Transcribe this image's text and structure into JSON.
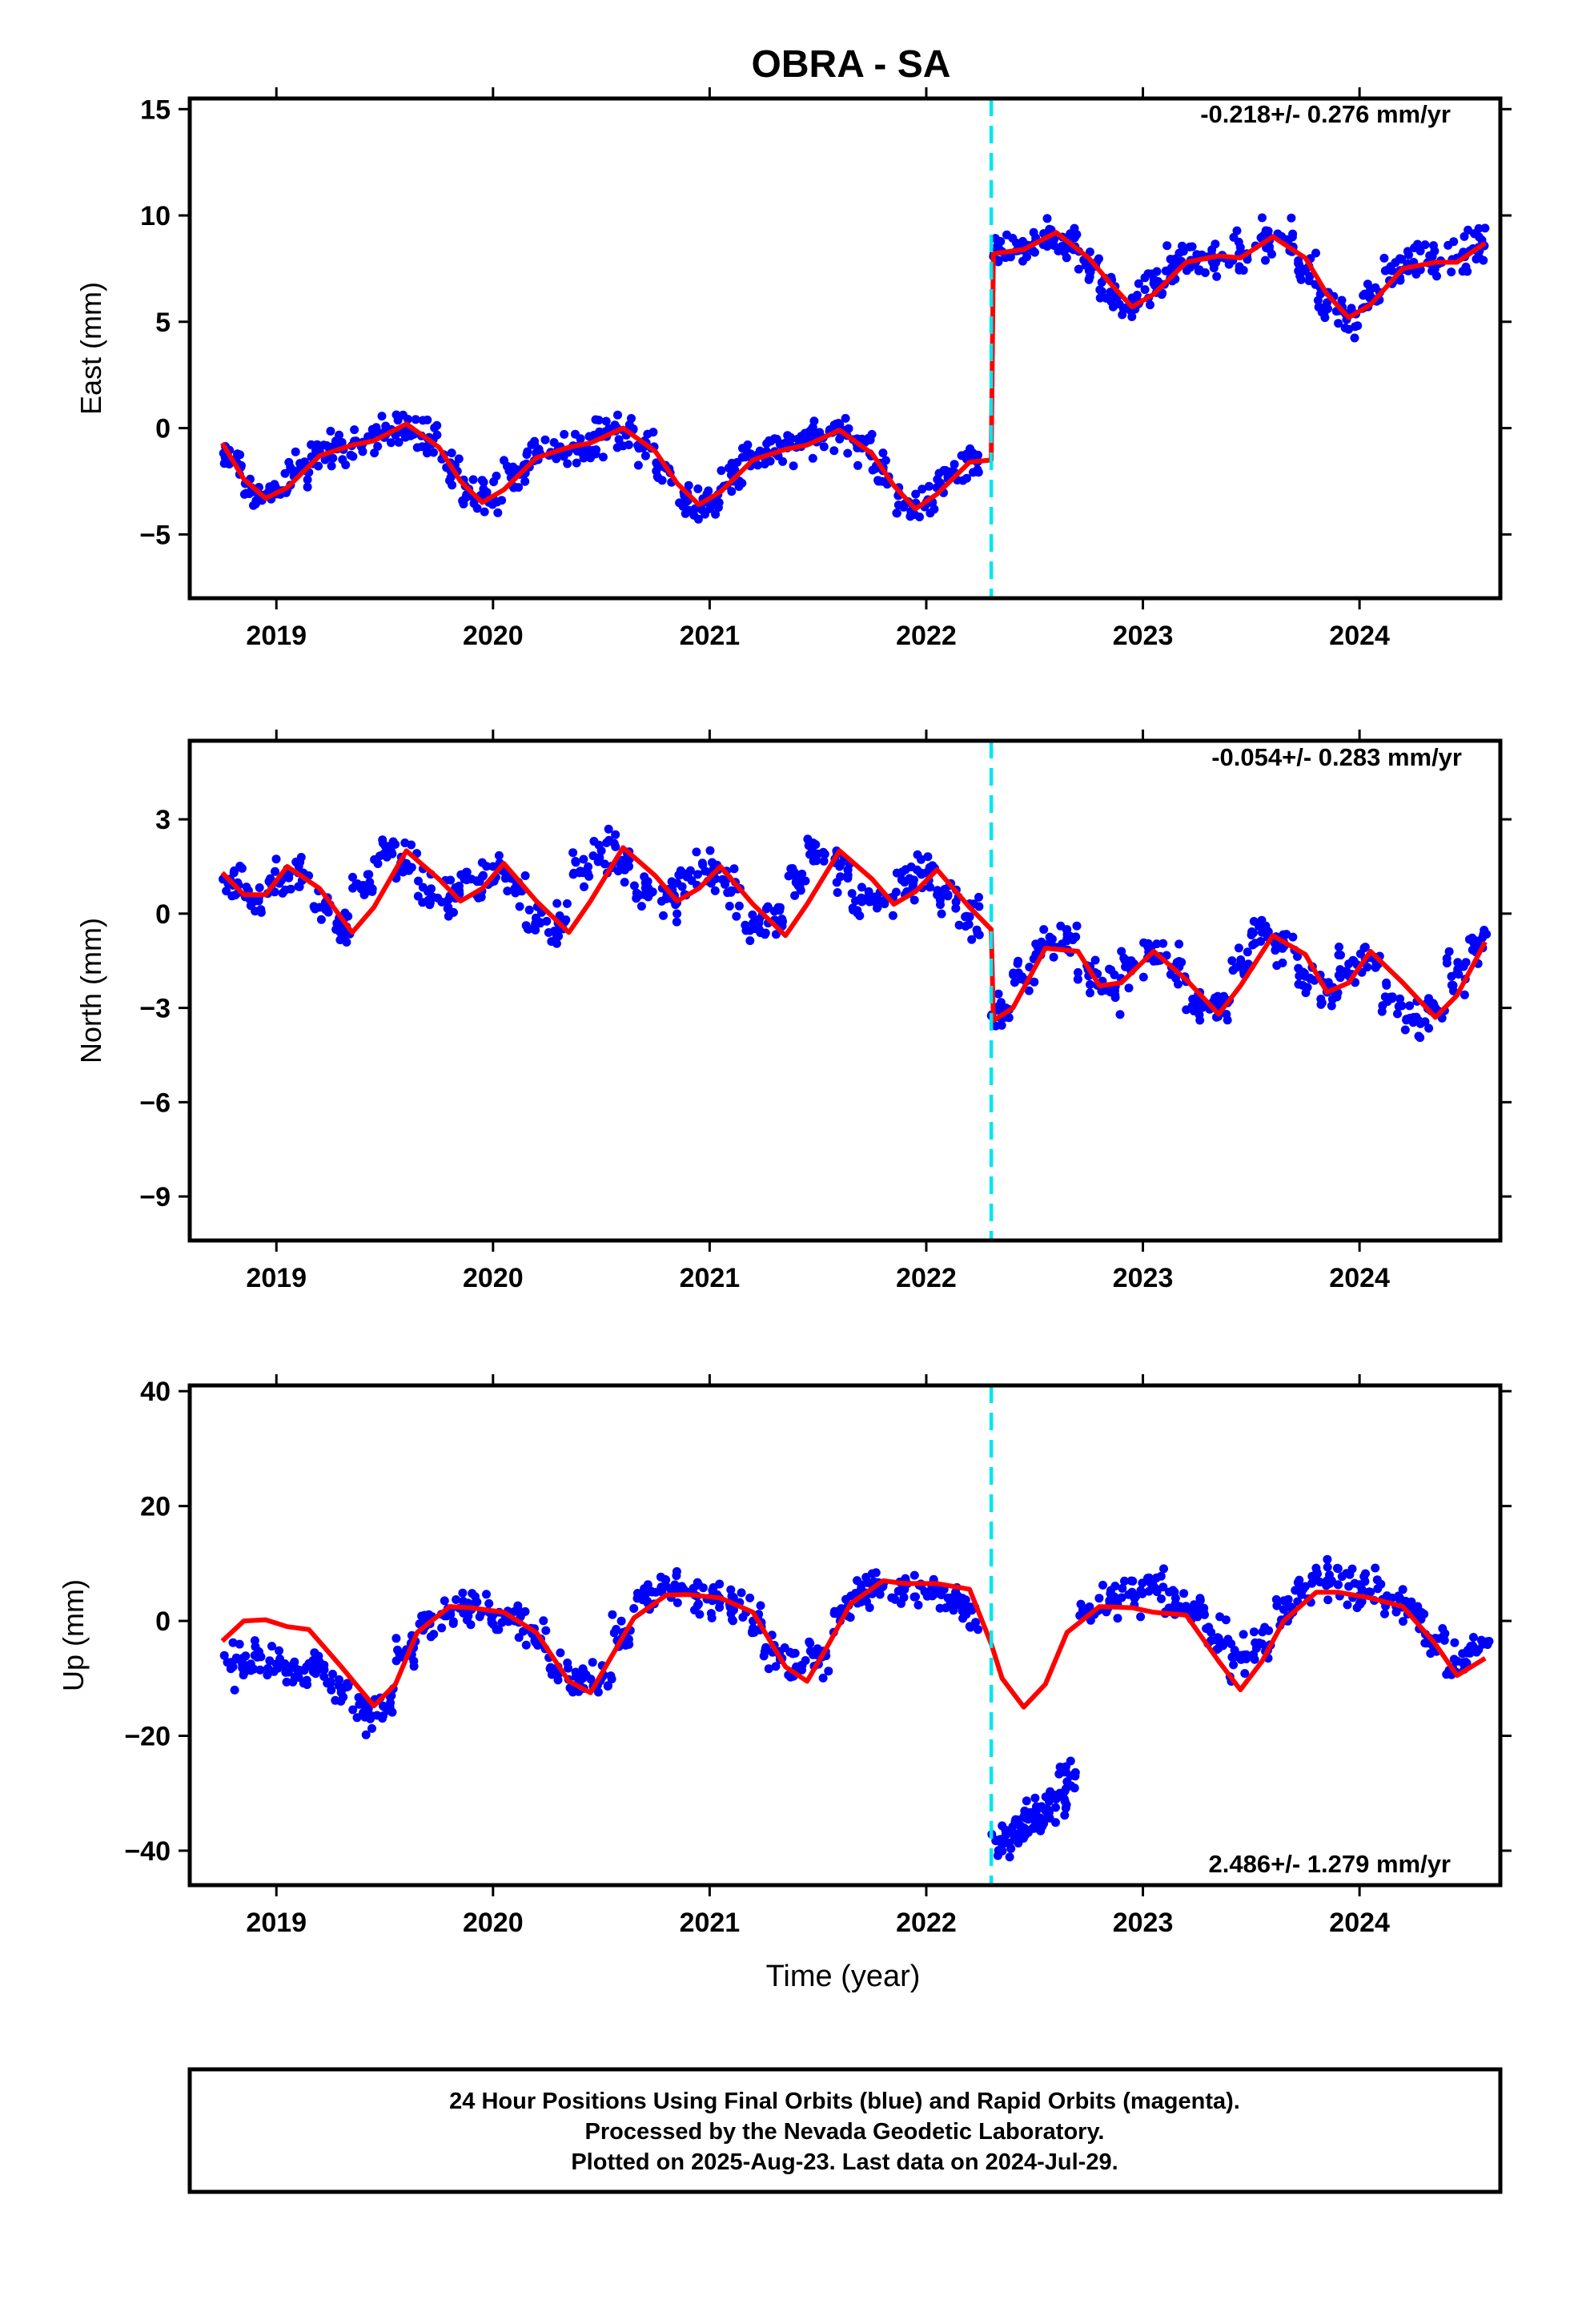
{
  "title": "OBRA - SA",
  "x_axis_label": "Time (year)",
  "footer": {
    "line1": "24 Hour Positions Using Final Orbits (blue) and Rapid Orbits (magenta).",
    "line2": "Processed by the Nevada Geodetic Laboratory.",
    "line3": "Plotted on 2025-Aug-23. Last data on 2024-Jul-29."
  },
  "colors": {
    "points": "#0000ff",
    "model": "#ff0000",
    "offset_line": "#00e5ee",
    "frame": "#000000"
  },
  "chart_data": [
    {
      "type": "scatter",
      "component": "east",
      "ylabel": "East (mm)",
      "rate": "-0.218+/- 0.276 mm/yr",
      "xlim": [
        2018.6,
        2024.65
      ],
      "ylim": [
        -8,
        15.5
      ],
      "xticks": [
        2019,
        2020,
        2021,
        2022,
        2023,
        2024
      ],
      "yticks": [
        -5,
        0,
        5,
        10,
        15
      ],
      "offset_epoch": 2022.3,
      "model_line": {
        "x": [
          2018.75,
          2018.85,
          2018.95,
          2019.05,
          2019.2,
          2019.35,
          2019.45,
          2019.6,
          2019.75,
          2019.85,
          2019.95,
          2020.05,
          2020.2,
          2020.35,
          2020.45,
          2020.6,
          2020.75,
          2020.85,
          2020.95,
          2021.05,
          2021.2,
          2021.35,
          2021.45,
          2021.6,
          2021.75,
          2021.85,
          2021.95,
          2022.05,
          2022.2,
          2022.3,
          2022.31,
          2022.45,
          2022.6,
          2022.75,
          2022.85,
          2022.95,
          2023.05,
          2023.2,
          2023.35,
          2023.45,
          2023.6,
          2023.75,
          2023.85,
          2023.95,
          2024.05,
          2024.2,
          2024.35,
          2024.45,
          2024.58
        ],
        "y": [
          -0.7,
          -2.4,
          -3.3,
          -2.8,
          -1.3,
          -0.8,
          -0.6,
          0.2,
          -0.9,
          -2.5,
          -3.5,
          -2.9,
          -1.4,
          -0.9,
          -0.7,
          0.0,
          -1.1,
          -2.6,
          -3.6,
          -3.0,
          -1.5,
          -1.0,
          -0.8,
          -0.1,
          -1.2,
          -2.7,
          -3.8,
          -3.1,
          -1.6,
          -1.5,
          8.2,
          8.4,
          9.2,
          8.0,
          6.8,
          5.7,
          6.3,
          7.8,
          8.1,
          8.0,
          9.0,
          8.0,
          6.3,
          5.2,
          5.8,
          7.5,
          7.8,
          7.8,
          8.7
        ]
      },
      "series": [
        {
          "name": "Final Orbits",
          "x": [
            2018.8,
            2018.9,
            2019.0,
            2019.1,
            2019.2,
            2019.3,
            2019.4,
            2019.5,
            2019.6,
            2019.7,
            2019.8,
            2019.9,
            2020.0,
            2020.1,
            2020.2,
            2020.3,
            2020.4,
            2020.5,
            2020.6,
            2020.7,
            2020.8,
            2020.9,
            2021.0,
            2021.1,
            2021.2,
            2021.3,
            2021.4,
            2021.5,
            2021.6,
            2021.7,
            2021.8,
            2021.9,
            2022.0,
            2022.1,
            2022.2,
            2022.35,
            2022.45,
            2022.55,
            2022.65,
            2022.75,
            2022.85,
            2022.95,
            2023.05,
            2023.15,
            2023.25,
            2023.35,
            2023.45,
            2023.55,
            2023.65,
            2023.75,
            2023.85,
            2023.95,
            2024.05,
            2024.15,
            2024.25,
            2024.35,
            2024.45,
            2024.55
          ],
          "y": [
            -1.5,
            -3.0,
            -3.1,
            -2.0,
            -1.1,
            -0.9,
            -0.7,
            -0.3,
            0.0,
            -0.5,
            -1.8,
            -3.2,
            -3.3,
            -2.1,
            -1.2,
            -1.0,
            -0.8,
            -0.4,
            -0.1,
            -0.6,
            -1.9,
            -3.4,
            -3.4,
            -2.2,
            -1.3,
            -1.1,
            -0.9,
            -0.4,
            -0.2,
            -0.7,
            -2.0,
            -3.6,
            -3.5,
            -2.3,
            -1.5,
            8.3,
            8.6,
            9.0,
            8.8,
            7.6,
            6.4,
            5.9,
            6.8,
            7.7,
            8.1,
            8.0,
            8.2,
            8.9,
            8.8,
            7.4,
            5.9,
            5.3,
            6.2,
            7.4,
            7.8,
            7.7,
            8.0,
            8.5
          ]
        }
      ]
    },
    {
      "type": "scatter",
      "component": "north",
      "ylabel": "North (mm)",
      "rate": "-0.054+/- 0.283 mm/yr",
      "xlim": [
        2018.6,
        2024.65
      ],
      "ylim": [
        -10.4,
        5.5
      ],
      "xticks": [
        2019,
        2020,
        2021,
        2022,
        2023,
        2024
      ],
      "yticks": [
        -9,
        -6,
        -3,
        0,
        3
      ],
      "offset_epoch": 2022.3,
      "model_line": {
        "x": [
          2018.75,
          2018.85,
          2018.95,
          2019.05,
          2019.2,
          2019.35,
          2019.45,
          2019.6,
          2019.75,
          2019.85,
          2019.95,
          2020.05,
          2020.2,
          2020.35,
          2020.45,
          2020.6,
          2020.75,
          2020.85,
          2020.95,
          2021.05,
          2021.2,
          2021.35,
          2021.45,
          2021.6,
          2021.75,
          2021.85,
          2021.95,
          2022.05,
          2022.2,
          2022.3,
          2022.31,
          2022.4,
          2022.55,
          2022.7,
          2022.8,
          2022.9,
          2023.05,
          2023.2,
          2023.35,
          2023.45,
          2023.6,
          2023.75,
          2023.85,
          2023.95,
          2024.05,
          2024.2,
          2024.35,
          2024.45,
          2024.58
        ],
        "y": [
          1.3,
          0.6,
          0.6,
          1.5,
          0.8,
          -0.6,
          0.2,
          2.0,
          1.1,
          0.4,
          0.8,
          1.6,
          0.4,
          -0.6,
          0.4,
          2.1,
          1.2,
          0.4,
          0.8,
          1.5,
          0.3,
          -0.7,
          0.3,
          2.0,
          1.1,
          0.3,
          0.7,
          1.4,
          0.2,
          -0.5,
          -3.4,
          -3.0,
          -1.1,
          -1.2,
          -2.3,
          -2.2,
          -1.2,
          -2.1,
          -3.2,
          -2.3,
          -0.7,
          -1.3,
          -2.5,
          -2.2,
          -1.2,
          -2.2,
          -3.3,
          -2.6,
          -0.9
        ]
      },
      "series": [
        {
          "name": "Final Orbits",
          "x": [
            2018.8,
            2018.9,
            2019.0,
            2019.1,
            2019.2,
            2019.3,
            2019.4,
            2019.5,
            2019.6,
            2019.7,
            2019.8,
            2019.9,
            2020.0,
            2020.1,
            2020.2,
            2020.3,
            2020.4,
            2020.5,
            2020.6,
            2020.7,
            2020.8,
            2020.9,
            2021.0,
            2021.1,
            2021.2,
            2021.3,
            2021.4,
            2021.5,
            2021.6,
            2021.7,
            2021.8,
            2021.9,
            2022.0,
            2022.1,
            2022.2,
            2022.35,
            2022.45,
            2022.55,
            2022.65,
            2022.75,
            2022.85,
            2022.95,
            2023.05,
            2023.15,
            2023.25,
            2023.35,
            2023.45,
            2023.55,
            2023.65,
            2023.75,
            2023.85,
            2023.95,
            2024.05,
            2024.15,
            2024.25,
            2024.35,
            2024.45,
            2024.55
          ],
          "y": [
            0.9,
            0.4,
            1.0,
            1.3,
            0.2,
            -0.4,
            0.9,
            1.9,
            1.6,
            0.7,
            0.5,
            1.1,
            1.5,
            0.8,
            -0.2,
            -0.3,
            1.3,
            2.0,
            1.7,
            0.6,
            0.5,
            1.2,
            1.3,
            0.7,
            -0.3,
            -0.2,
            1.1,
            1.9,
            1.5,
            0.5,
            0.4,
            1.0,
            1.3,
            0.6,
            -0.1,
            -3.2,
            -2.1,
            -1.0,
            -0.8,
            -1.8,
            -2.4,
            -1.6,
            -1.3,
            -1.7,
            -2.8,
            -2.9,
            -1.6,
            -0.6,
            -0.9,
            -2.0,
            -2.5,
            -1.6,
            -1.4,
            -2.7,
            -3.3,
            -3.0,
            -1.9,
            -1.0
          ]
        }
      ]
    },
    {
      "type": "scatter",
      "component": "up",
      "ylabel": "Up (mm)",
      "rate": "2.486+/- 1.279 mm/yr",
      "xlim": [
        2018.6,
        2024.65
      ],
      "ylim": [
        -46,
        41
      ],
      "xticks": [
        2019,
        2020,
        2021,
        2022,
        2023,
        2024
      ],
      "yticks": [
        -40,
        -20,
        0,
        20,
        40
      ],
      "offset_epoch": 2022.3,
      "model_line": {
        "x": [
          2018.75,
          2018.85,
          2018.95,
          2019.05,
          2019.15,
          2019.3,
          2019.45,
          2019.55,
          2019.65,
          2019.8,
          2019.9,
          2020.05,
          2020.2,
          2020.35,
          2020.45,
          2020.55,
          2020.65,
          2020.8,
          2020.9,
          2021.05,
          2021.2,
          2021.35,
          2021.45,
          2021.55,
          2021.65,
          2021.8,
          2021.9,
          2022.05,
          2022.2,
          2022.3,
          2022.35,
          2022.45,
          2022.55,
          2022.65,
          2022.8,
          2022.95,
          2023.05,
          2023.2,
          2023.35,
          2023.45,
          2023.55,
          2023.65,
          2023.8,
          2023.9,
          2024.05,
          2024.2,
          2024.35,
          2024.45,
          2024.58
        ],
        "y": [
          -3.5,
          0.0,
          0.2,
          -1.0,
          -1.5,
          -8.0,
          -14.8,
          -11.0,
          -2.0,
          2.5,
          2.3,
          1.5,
          -2.0,
          -10.5,
          -12.5,
          -6.0,
          0.5,
          4.5,
          4.6,
          4.0,
          1.5,
          -8.0,
          -10.5,
          -4.0,
          3.0,
          7.0,
          6.5,
          6.5,
          5.5,
          -4.0,
          -10.0,
          -15.0,
          -11.0,
          -2.0,
          2.5,
          2.3,
          1.5,
          1.0,
          -7.0,
          -12.0,
          -7.0,
          0.0,
          5.0,
          5.0,
          4.0,
          2.5,
          -4.0,
          -9.5,
          -6.5
        ]
      },
      "series": [
        {
          "name": "Final Orbits",
          "x": [
            2018.8,
            2018.9,
            2019.0,
            2019.1,
            2019.2,
            2019.3,
            2019.4,
            2019.5,
            2019.6,
            2019.7,
            2019.8,
            2019.9,
            2020.0,
            2020.1,
            2020.2,
            2020.3,
            2020.4,
            2020.5,
            2020.6,
            2020.7,
            2020.8,
            2020.9,
            2021.0,
            2021.1,
            2021.2,
            2021.3,
            2021.4,
            2021.5,
            2021.6,
            2021.7,
            2021.8,
            2021.9,
            2022.0,
            2022.1,
            2022.2,
            2022.35,
            2022.4,
            2022.45,
            2022.5,
            2022.55,
            2022.6,
            2022.65,
            2022.75,
            2022.85,
            2022.95,
            2023.05,
            2023.15,
            2023.25,
            2023.35,
            2023.45,
            2023.55,
            2023.65,
            2023.75,
            2023.85,
            2023.95,
            2024.05,
            2024.15,
            2024.25,
            2024.35,
            2024.45,
            2024.55
          ],
          "y": [
            -8.0,
            -6.0,
            -7.5,
            -9.0,
            -8.0,
            -12.0,
            -16.0,
            -15.0,
            -5.0,
            0.0,
            1.5,
            2.0,
            1.0,
            0.0,
            -3.0,
            -8.0,
            -11.0,
            -10.0,
            -2.0,
            4.0,
            6.0,
            5.0,
            4.0,
            3.0,
            0.0,
            -5.0,
            -8.0,
            -6.0,
            1.0,
            5.0,
            6.0,
            5.5,
            5.0,
            4.0,
            2.0,
            -38.0,
            -37.0,
            -36.0,
            -34.0,
            -33.0,
            -31.0,
            -28.0,
            2.0,
            3.0,
            5.0,
            6.0,
            3.0,
            1.0,
            -3.0,
            -6.0,
            -4.0,
            2.0,
            6.0,
            7.0,
            6.0,
            5.0,
            4.0,
            1.0,
            -3.0,
            -7.0,
            -5.0
          ]
        }
      ]
    }
  ]
}
